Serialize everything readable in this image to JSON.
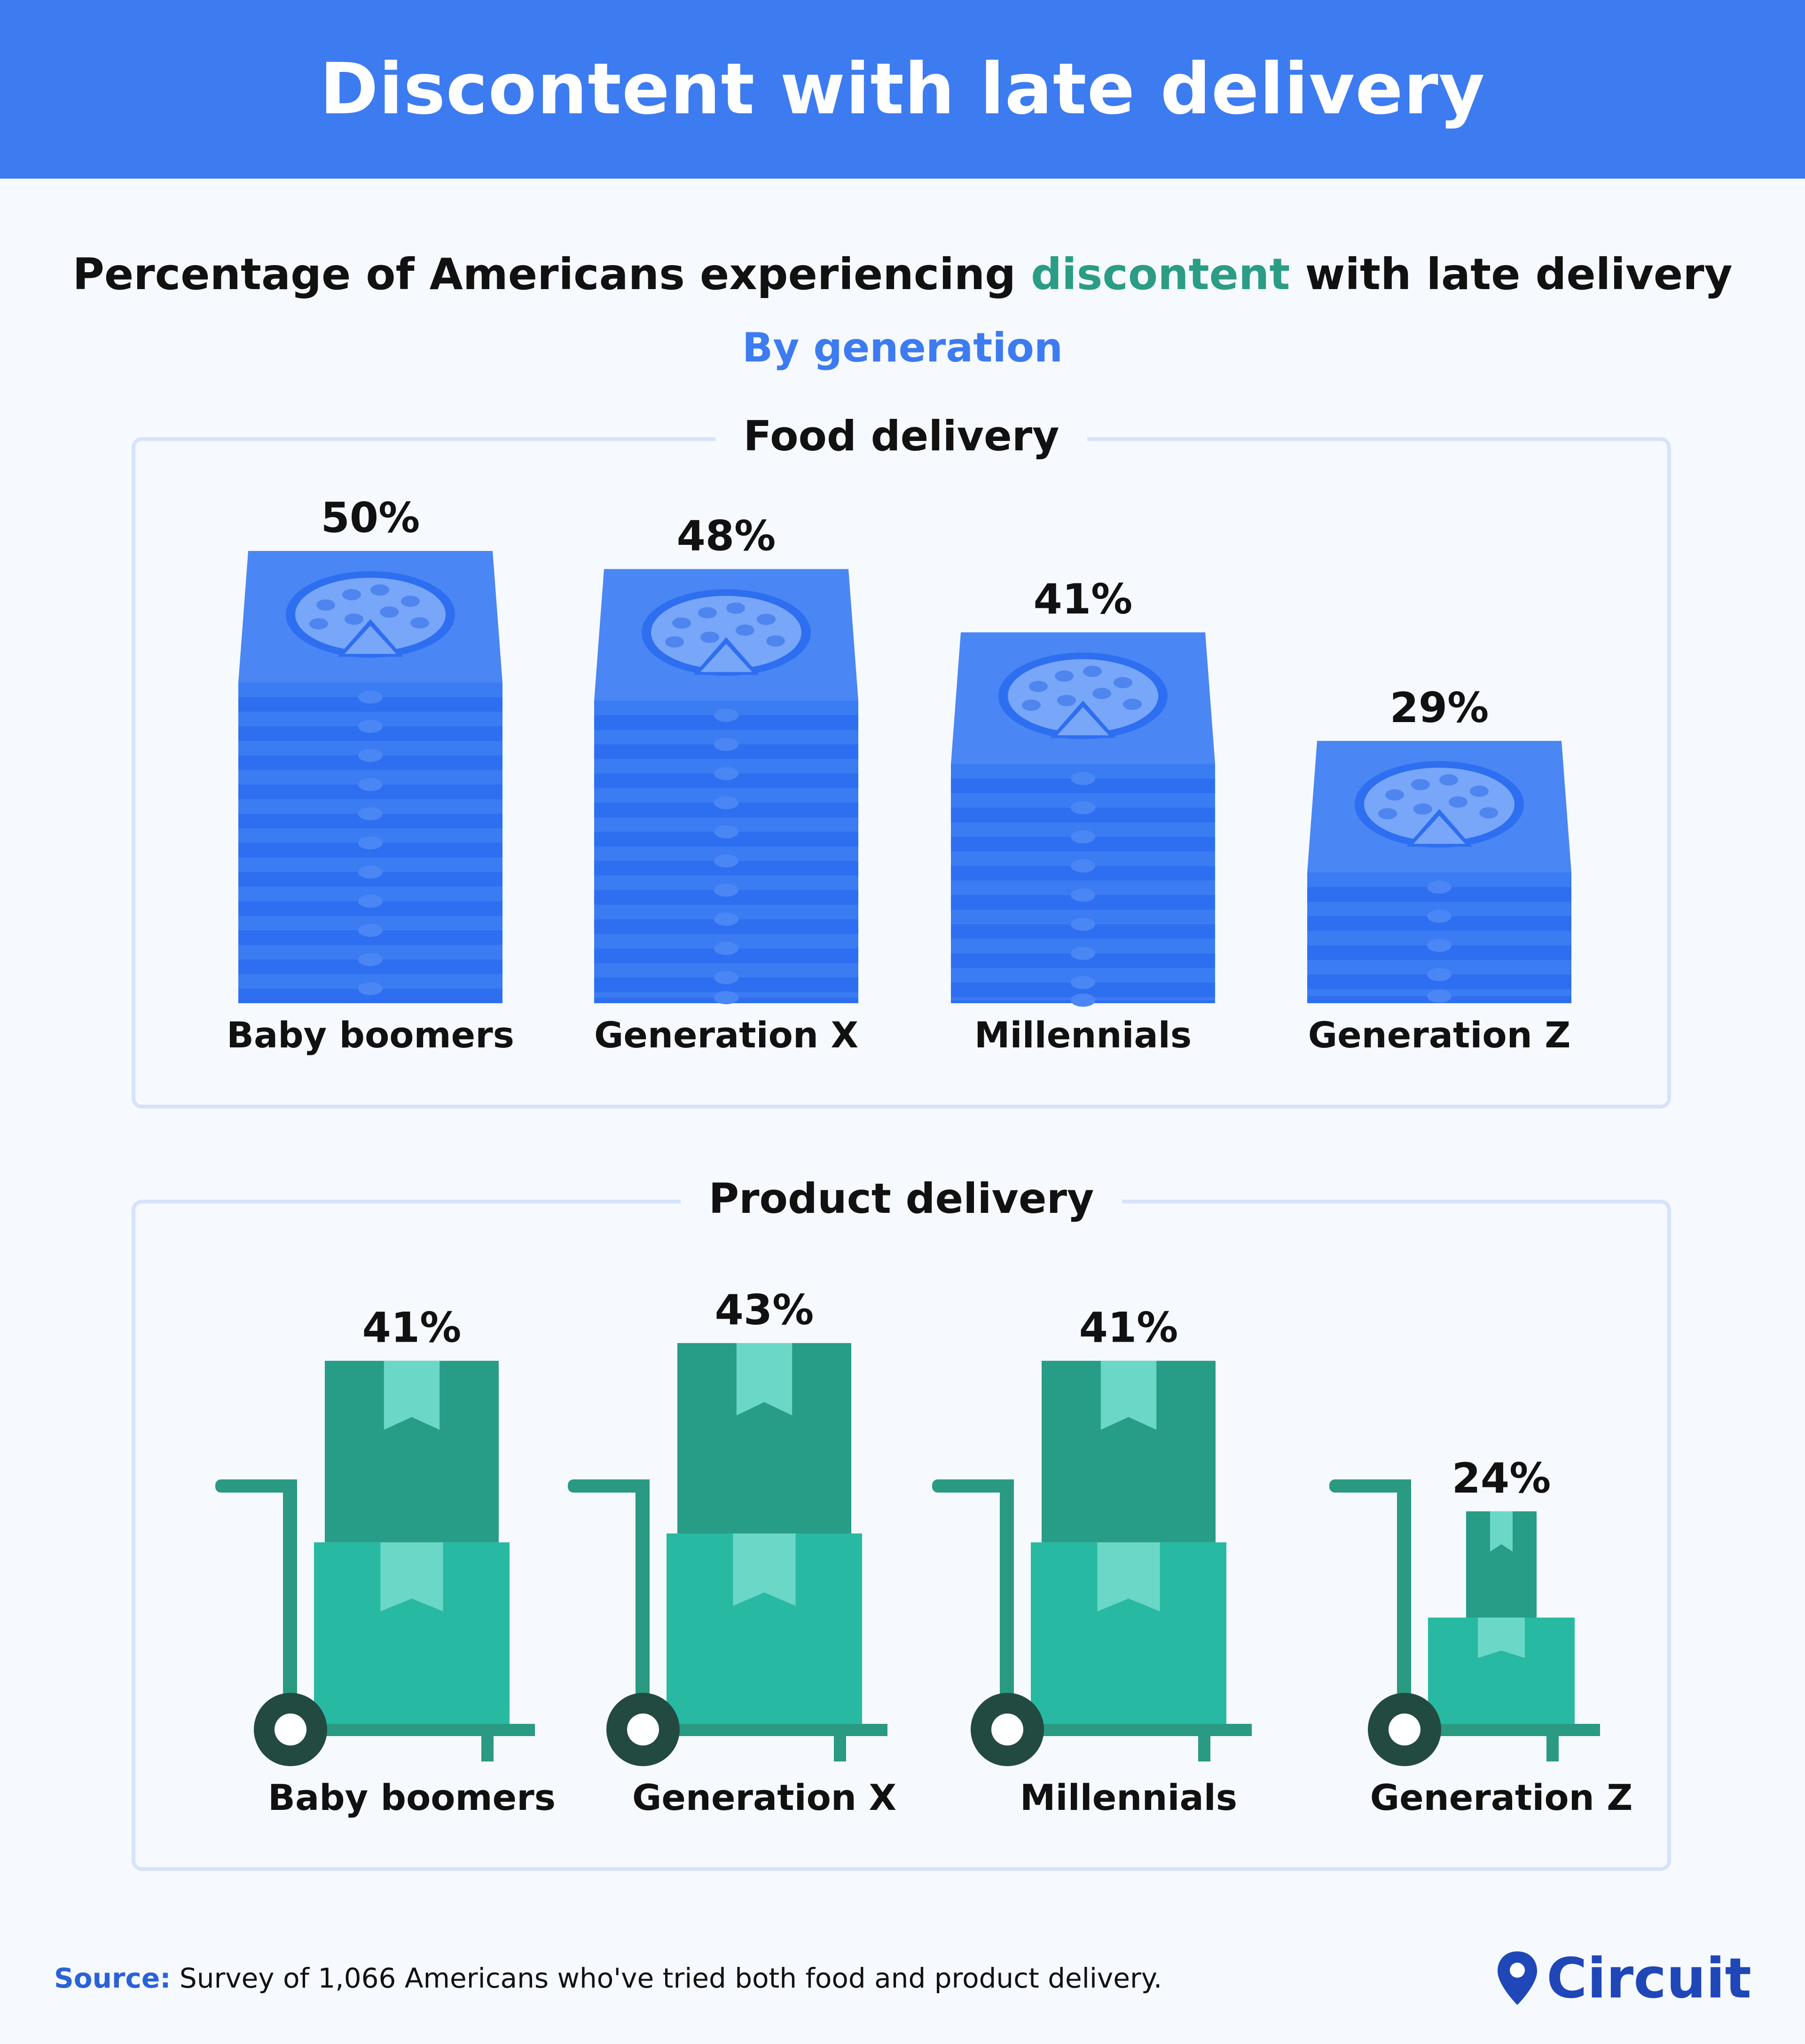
{
  "header": {
    "title": "Discontent with late delivery"
  },
  "subtitle": {
    "before": "Percentage of Americans experiencing ",
    "accent": "discontent",
    "after": " with late delivery"
  },
  "byline": "By generation",
  "chart_data": [
    {
      "type": "bar",
      "title": "Food delivery",
      "categories": [
        "Baby boomers",
        "Generation X",
        "Millennials",
        "Generation Z"
      ],
      "values": [
        50,
        48,
        41,
        29
      ],
      "value_labels": [
        "50%",
        "48%",
        "41%",
        "29%"
      ],
      "unit": "%",
      "colors": {
        "bar": "#2e6ef0",
        "bar_alt": "#3b7cf3",
        "lid": "#4a86f4",
        "pizza": "#78a6f8",
        "dot": "#4f85ee"
      }
    },
    {
      "type": "bar",
      "title": "Product delivery",
      "categories": [
        "Baby boomers",
        "Generation X",
        "Millennials",
        "Generation Z"
      ],
      "values": [
        41,
        43,
        41,
        24
      ],
      "value_labels": [
        "41%",
        "43%",
        "41%",
        "24%"
      ],
      "unit": "%",
      "colors": {
        "box_top": "#279c86",
        "box_bottom": "#28b9a2",
        "tape": "#6bd7c7",
        "cart": "#2a9a82",
        "wheel": "#234a40"
      }
    }
  ],
  "footer": {
    "source_label": "Source:",
    "source_text": " Survey of 1,066 Americans who've tried both food and product delivery.",
    "logo_text": "Circuit",
    "logo_icon": "map-pin-icon",
    "logo_color": "#1f47b8"
  }
}
